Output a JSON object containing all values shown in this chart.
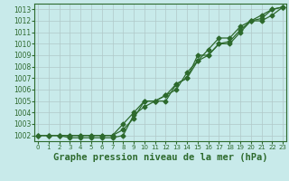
{
  "x": [
    0,
    1,
    2,
    3,
    4,
    5,
    6,
    7,
    8,
    9,
    10,
    11,
    12,
    13,
    14,
    15,
    16,
    17,
    18,
    19,
    20,
    21,
    22,
    23
  ],
  "line1": [
    1002.0,
    1002.0,
    1002.0,
    1002.0,
    1002.0,
    1002.0,
    1002.0,
    1002.0,
    1002.5,
    1003.5,
    1005.0,
    1005.0,
    1005.5,
    1006.0,
    1007.5,
    1008.5,
    1009.5,
    1010.5,
    1010.5,
    1011.5,
    1012.0,
    1012.5,
    1013.0,
    1013.2
  ],
  "line2": [
    1002.0,
    1002.0,
    1002.0,
    1002.0,
    1002.0,
    1002.0,
    1002.0,
    1002.0,
    1003.0,
    1004.0,
    1005.0,
    1005.0,
    1005.5,
    1006.5,
    1007.0,
    1008.5,
    1009.0,
    1010.0,
    1010.0,
    1011.0,
    1012.0,
    1012.0,
    1012.5,
    1013.2
  ],
  "line3": [
    1002.0,
    1002.0,
    1002.0,
    1001.8,
    1001.8,
    1001.8,
    1001.8,
    1001.8,
    1002.0,
    1003.8,
    1004.5,
    1005.0,
    1005.0,
    1006.5,
    1007.0,
    1009.0,
    1009.0,
    1010.0,
    1010.2,
    1011.2,
    1012.0,
    1012.2,
    1013.0,
    1013.2
  ],
  "line_color": "#2d6a2d",
  "bg_color": "#c8eaea",
  "grid_color": "#b0c8c8",
  "title": "Graphe pression niveau de la mer (hPa)",
  "ylim": [
    1001.5,
    1013.5
  ],
  "xlim": [
    -0.3,
    23.3
  ],
  "yticks": [
    1002,
    1003,
    1004,
    1005,
    1006,
    1007,
    1008,
    1009,
    1010,
    1011,
    1012,
    1013
  ],
  "xticks": [
    0,
    1,
    2,
    3,
    4,
    5,
    6,
    7,
    8,
    9,
    10,
    11,
    12,
    13,
    14,
    15,
    16,
    17,
    18,
    19,
    20,
    21,
    22,
    23
  ],
  "title_fontsize": 7.5,
  "tick_fontsize": 5.5,
  "marker": "D",
  "marker_size": 2.5,
  "line_width": 0.9
}
